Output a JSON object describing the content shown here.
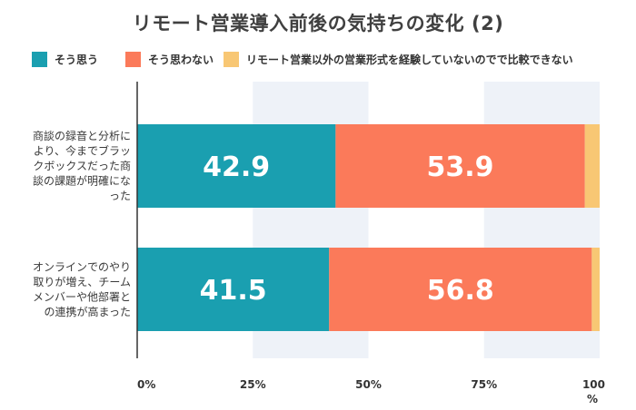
{
  "chart_data": {
    "type": "bar",
    "orientation": "horizontal",
    "stacked": true,
    "title": "リモート営業導入前後の気持ちの変化 (2)",
    "categories": [
      "商談の録音と分析により、今までブラックボックスだった商談の課題が明確になった",
      "オンラインでのやり取りが増え、チームメンバーや他部署との連携が高まった"
    ],
    "category_lines": [
      [
        "商談の録音と分析に",
        "より、今までブラッ",
        "クボックスだった商",
        "談の課題が明確にな",
        "った"
      ],
      [
        "オンラインでのやり",
        "取りが増え、チーム",
        "メンバーや他部署と",
        "の連携が高まった"
      ]
    ],
    "series": [
      {
        "name": "そう思う",
        "values": [
          42.9,
          41.5
        ],
        "labels": [
          "42.9",
          "41.5"
        ],
        "color": "#1a9fb0"
      },
      {
        "name": "そう思わない",
        "values": [
          53.9,
          56.8
        ],
        "labels": [
          "53.9",
          "56.8"
        ],
        "color": "#fb7a5a"
      },
      {
        "name": "リモート営業以外の営業形式を経験していないのでで比較できない",
        "values": [
          3.2,
          1.7
        ],
        "labels": [
          "",
          ""
        ],
        "color": "#f8c774"
      }
    ],
    "xlim": [
      0,
      100
    ],
    "xticks": [
      0,
      25,
      50,
      75,
      100
    ],
    "xtick_labels": [
      "0%",
      "25%",
      "50%",
      "75%",
      "100"
    ],
    "xunit": "%",
    "legend_position": "top",
    "grid": "alternating-bands"
  }
}
